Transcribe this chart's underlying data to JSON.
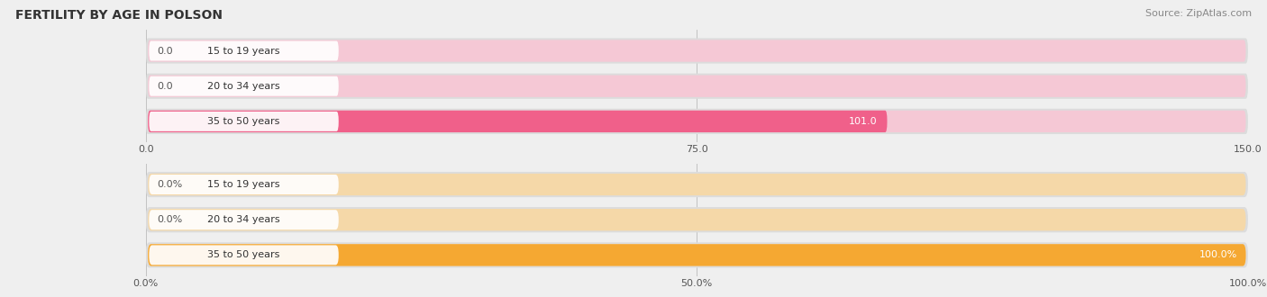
{
  "title": "FERTILITY BY AGE IN POLSON",
  "source": "Source: ZipAtlas.com",
  "top_chart": {
    "categories": [
      "15 to 19 years",
      "20 to 34 years",
      "35 to 50 years"
    ],
    "values": [
      0.0,
      0.0,
      101.0
    ],
    "xlim": [
      0,
      150
    ],
    "xticks": [
      0.0,
      75.0,
      150.0
    ],
    "xtick_labels": [
      "0.0",
      "75.0",
      "150.0"
    ],
    "bar_color": "#F0608A",
    "bar_bg_color": "#F5C8D5",
    "outer_bg_color": "#DCDCDC",
    "label_inside_color": "#FFFFFF",
    "label_outside_color": "#555555"
  },
  "bottom_chart": {
    "categories": [
      "15 to 19 years",
      "20 to 34 years",
      "35 to 50 years"
    ],
    "values": [
      0.0,
      0.0,
      100.0
    ],
    "xlim": [
      0,
      100
    ],
    "xticks": [
      0.0,
      50.0,
      100.0
    ],
    "xtick_labels": [
      "0.0%",
      "50.0%",
      "100.0%"
    ],
    "bar_color": "#F5A832",
    "bar_bg_color": "#F5D8A8",
    "outer_bg_color": "#DCDCDC",
    "label_inside_color": "#FFFFFF",
    "label_outside_color": "#555555"
  },
  "fig_bg_color": "#EFEFEF",
  "panel_bg_color": "#EFEFEF",
  "title_fontsize": 10,
  "label_fontsize": 8,
  "tick_fontsize": 8,
  "source_fontsize": 8
}
